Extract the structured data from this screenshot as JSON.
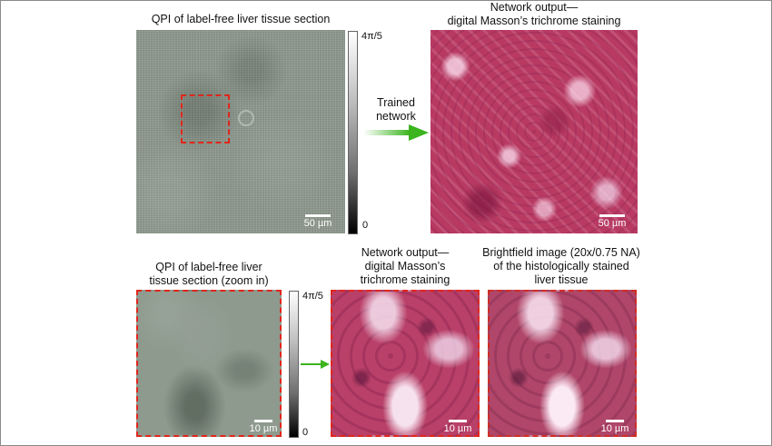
{
  "top_row": {
    "qpi_caption": "QPI of label-free liver tissue section",
    "colorbar_max": "4π/5",
    "colorbar_min": "0",
    "qpi_scale": "50 µm",
    "arrow_label_line1": "Trained",
    "arrow_label_line2": "network",
    "output_caption_line1": "Network output—",
    "output_caption_line2": "digital Masson’s trichrome staining",
    "output_scale": "50 µm"
  },
  "bottom_row": {
    "qpi_zoom_caption_line1": "QPI of label-free liver",
    "qpi_zoom_caption_line2": "tissue section (zoom in)",
    "colorbar_max": "4π/5",
    "colorbar_min": "0",
    "qpi_zoom_scale": "10 µm",
    "output_zoom_caption_line1": "Network output—",
    "output_zoom_caption_line2": "digital Masson’s",
    "output_zoom_caption_line3": "trichrome staining",
    "output_zoom_scale": "10 µm",
    "brightfield_caption_line1": "Brightfield image (20x/0.75 NA)",
    "brightfield_caption_line2": "of the histologically stained",
    "brightfield_caption_line3": "liver tissue",
    "brightfield_scale": "10 µm"
  },
  "colors": {
    "arrow": "#3bb41e",
    "zoom_box": "#e0261c"
  }
}
